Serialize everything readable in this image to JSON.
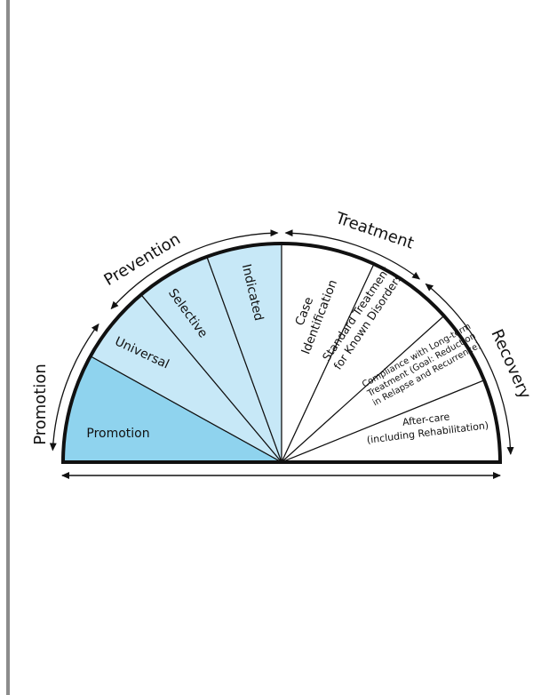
{
  "colors": {
    "promotion": "#8fd3ee",
    "prevention": "#c7e8f7",
    "treatment": "#ffffff",
    "outline": "#111111",
    "page_rule": "#8c8c8c"
  },
  "outer_labels": {
    "promotion": "Promotion",
    "prevention": "Prevention",
    "treatment": "Treatment",
    "recovery": "Recovery"
  },
  "segments": [
    {
      "id": "promotion",
      "lines": [
        "Promotion"
      ],
      "fill": "promotion"
    },
    {
      "id": "universal",
      "lines": [
        "Universal"
      ],
      "fill": "prevention"
    },
    {
      "id": "selective",
      "lines": [
        "Selective"
      ],
      "fill": "prevention"
    },
    {
      "id": "indicated",
      "lines": [
        "Indicated"
      ],
      "fill": "prevention"
    },
    {
      "id": "case-identification",
      "lines": [
        "Case",
        "Identification"
      ],
      "fill": "treatment"
    },
    {
      "id": "standard-treatment",
      "lines": [
        "Standard Treatment",
        "for Known Disorders"
      ],
      "fill": "treatment"
    },
    {
      "id": "compliance",
      "lines": [
        "Compliance with Long-term",
        "Treatment (Goal: Reduction",
        "in Relapse and Recurrence)"
      ],
      "fill": "treatment"
    },
    {
      "id": "after-care",
      "lines": [
        "After-care",
        "(including Rehabilitation)"
      ],
      "fill": "treatment"
    }
  ]
}
